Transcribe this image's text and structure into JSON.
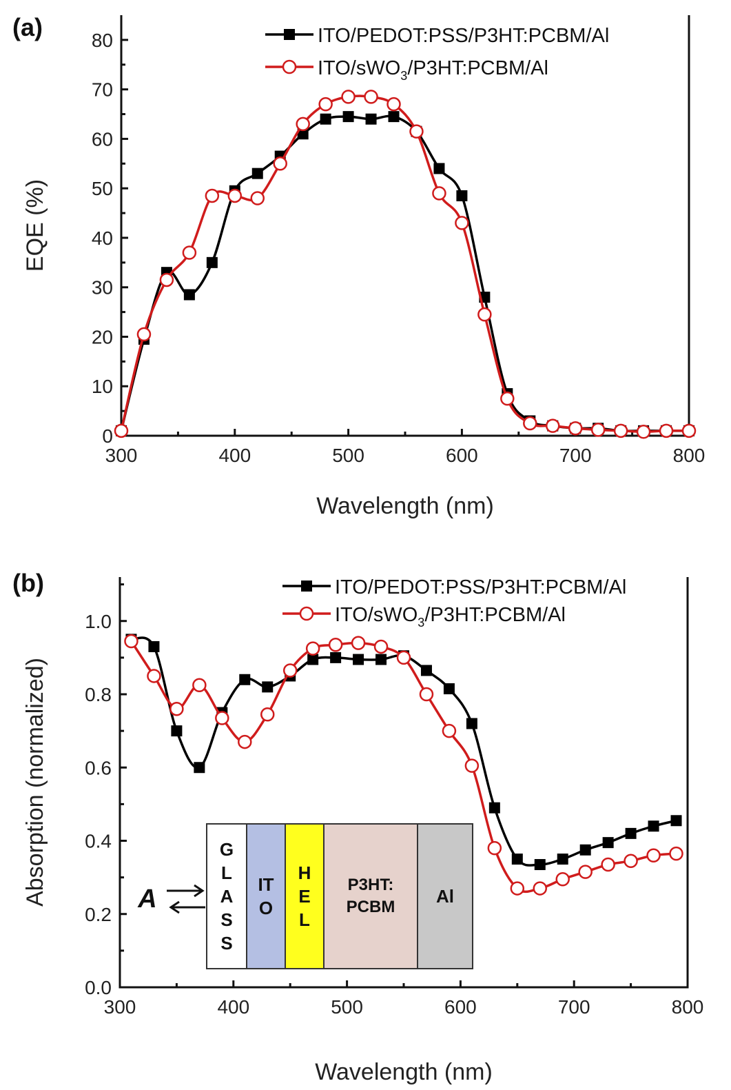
{
  "chart_data": [
    {
      "type": "line",
      "panel_label": "(a)",
      "xlabel": "Wavelength (nm)",
      "ylabel": "EQE (%)",
      "xlim": [
        300,
        800
      ],
      "ylim": [
        0,
        85
      ],
      "xticks": [
        300,
        400,
        500,
        600,
        700,
        800
      ],
      "yticks": [
        0,
        10,
        20,
        30,
        40,
        50,
        60,
        70,
        80
      ],
      "legend_position": "top-right",
      "series": [
        {
          "name": "ITO/PEDOT:PSS/P3HT:PCBM/Al",
          "color": "#000000",
          "marker": "filled-square",
          "x": [
            300,
            320,
            340,
            360,
            380,
            400,
            420,
            440,
            460,
            480,
            500,
            520,
            540,
            560,
            580,
            600,
            620,
            640,
            660,
            680,
            700,
            720,
            740,
            760,
            780,
            800
          ],
          "y": [
            1,
            19.5,
            33,
            28.5,
            35,
            49.5,
            53,
            56.5,
            61,
            64,
            64.5,
            64,
            64.5,
            61.5,
            54,
            48.5,
            28,
            8.5,
            3,
            2,
            1.5,
            1.5,
            1,
            1,
            1,
            1
          ]
        },
        {
          "name": "ITO/sWO3/P3HT:PCBM/Al",
          "color": "#d01c1c",
          "marker": "open-circle",
          "x": [
            300,
            320,
            340,
            360,
            380,
            400,
            420,
            440,
            460,
            480,
            500,
            520,
            540,
            560,
            580,
            600,
            620,
            640,
            660,
            680,
            700,
            720,
            740,
            760,
            780,
            800
          ],
          "y": [
            1,
            20.5,
            31.5,
            37,
            48.5,
            48.5,
            48,
            55,
            63,
            67,
            68.5,
            68.5,
            67,
            61.5,
            49,
            43,
            24.5,
            7.5,
            2.5,
            2,
            1.5,
            1.2,
            1,
            0.8,
            1,
            1
          ]
        }
      ]
    },
    {
      "type": "line",
      "panel_label": "(b)",
      "xlabel": "Wavelength (nm)",
      "ylabel": "Absorption (normalized)",
      "xlim": [
        300,
        800
      ],
      "ylim": [
        0,
        1.12
      ],
      "xticks": [
        300,
        400,
        500,
        600,
        700,
        800
      ],
      "yticks": [
        "0.0",
        "0.2",
        "0.4",
        "0.6",
        "0.8",
        "1.0"
      ],
      "legend_position": "top-right",
      "series": [
        {
          "name": "ITO/PEDOT:PSS/P3HT:PCBM/Al",
          "color": "#000000",
          "marker": "filled-square",
          "x": [
            310,
            330,
            350,
            370,
            390,
            410,
            430,
            450,
            470,
            490,
            510,
            530,
            550,
            570,
            590,
            610,
            630,
            650,
            670,
            690,
            710,
            730,
            750,
            770,
            790
          ],
          "y": [
            0.95,
            0.93,
            0.7,
            0.6,
            0.75,
            0.84,
            0.82,
            0.85,
            0.895,
            0.9,
            0.895,
            0.895,
            0.905,
            0.865,
            0.815,
            0.72,
            0.49,
            0.35,
            0.335,
            0.35,
            0.375,
            0.395,
            0.42,
            0.44,
            0.455
          ]
        },
        {
          "name": "ITO/sWO3/P3HT:PCBM/Al",
          "color": "#d01c1c",
          "marker": "open-circle",
          "x": [
            310,
            330,
            350,
            370,
            390,
            410,
            430,
            450,
            470,
            490,
            510,
            530,
            550,
            570,
            590,
            610,
            630,
            650,
            670,
            690,
            710,
            730,
            750,
            770,
            790
          ],
          "y": [
            0.945,
            0.85,
            0.76,
            0.825,
            0.735,
            0.67,
            0.745,
            0.865,
            0.925,
            0.935,
            0.94,
            0.93,
            0.9,
            0.8,
            0.7,
            0.605,
            0.38,
            0.27,
            0.27,
            0.295,
            0.315,
            0.335,
            0.345,
            0.36,
            0.365
          ]
        }
      ],
      "inset": {
        "arrow_label": "A",
        "layers": [
          {
            "label": "GLASS",
            "color": "#ffffff",
            "vertical": true
          },
          {
            "label": "ITO",
            "color": "#b4bfe3",
            "vertical": true
          },
          {
            "label": "HEL",
            "color": "#ffff1e",
            "vertical": true
          },
          {
            "label": "P3HT:\nPCBM",
            "color": "#e6d2cc",
            "vertical": false
          },
          {
            "label": "Al",
            "color": "#c8c8c8",
            "vertical": true
          }
        ]
      }
    }
  ]
}
